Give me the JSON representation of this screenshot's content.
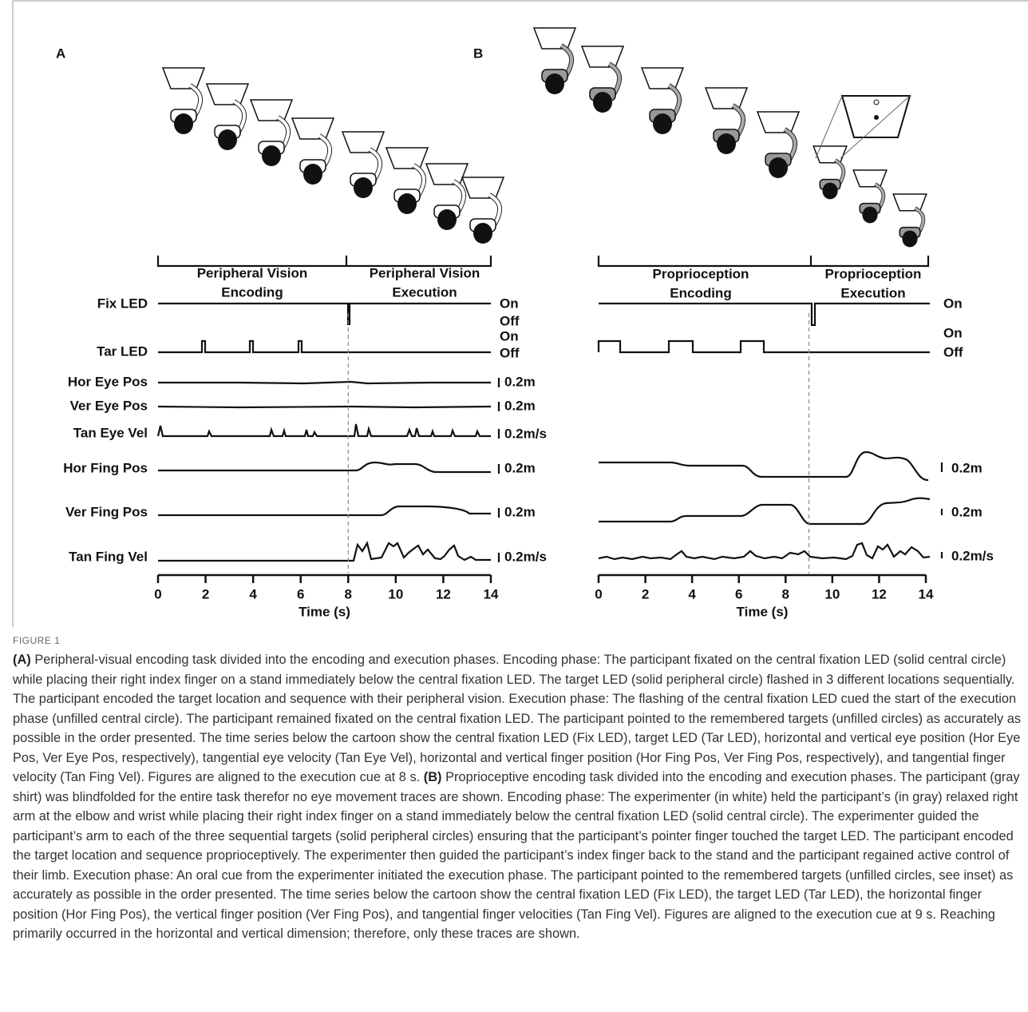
{
  "panel_a": {
    "label": "A",
    "phase_encoding": [
      "Peripheral Vision",
      "Encoding"
    ],
    "phase_execution": [
      "Peripheral Vision",
      "Execution"
    ],
    "rows": [
      "Fix LED",
      "Tar LED",
      "Hor Eye Pos",
      "Ver Eye Pos",
      "Tan Eye Vel",
      "Hor Fing Pos",
      "Ver Fing Pos",
      "Tan Fing Vel"
    ],
    "scales": [
      "On",
      "Off",
      "On",
      "Off",
      "0.2m",
      "0.2m",
      "0.2m/s",
      "0.2m",
      "0.2m",
      "0.2m/s"
    ],
    "xlabel": "Time (s)",
    "xlim": [
      0,
      14
    ],
    "xticks": [
      0,
      2,
      4,
      6,
      8,
      10,
      12,
      14
    ],
    "execution_cue": 8
  },
  "panel_b": {
    "label": "B",
    "phase_encoding": [
      "Proprioception",
      "Encoding"
    ],
    "phase_execution": [
      "Proprioception",
      "Execution"
    ],
    "scales": [
      "On",
      "On",
      "Off",
      "0.2m",
      "0.2m",
      "0.2m/s"
    ],
    "xlabel": "Time (s)",
    "xlim": [
      0,
      14
    ],
    "xticks": [
      0,
      2,
      4,
      6,
      8,
      10,
      12,
      14
    ],
    "execution_cue": 9
  },
  "caption": {
    "figure_label": "FIGURE 1",
    "a_label": "(A)",
    "a_text": " Peripheral-visual encoding task divided into the encoding and execution phases. Encoding phase: The participant fixated on the central fixation LED (solid central circle) while placing their right index finger on a stand immediately below the central fixation LED. The target LED (solid peripheral circle) flashed in 3 different locations sequentially. The participant encoded the target location and sequence with their peripheral vision. Execution phase: The flashing of the central fixation LED cued the start of the execution phase (unfilled central circle). The participant remained fixated on the central fixation LED. The participant pointed to the remembered targets (unfilled circles) as accurately as possible in the order presented. The time series below the cartoon show the central fixation LED (Fix LED), target LED (Tar LED), horizontal and vertical eye position (Hor Eye Pos, Ver Eye Pos, respectively), tangential eye velocity (Tan Eye Vel), horizontal and vertical finger position (Hor Fing Pos, Ver Fing Pos, respectively), and tangential finger velocity (Tan Fing Vel). Figures are aligned to the execution cue at 8 s. ",
    "b_label": "(B)",
    "b_text": " Proprioceptive encoding task divided into the encoding and execution phases. The participant (gray shirt) was blindfolded for the entire task therefor no eye movement traces are shown. Encoding phase: The experimenter (in white) held the participant’s (in gray) relaxed right arm at the elbow and wrist while placing their right index finger on a stand immediately below the central fixation LED (solid central circle). The experimenter guided the participant’s arm to each of the three sequential targets (solid peripheral circles) ensuring that the participant’s pointer finger touched the target LED. The participant encoded the target location and sequence proprioceptively. The experimenter then guided the participant’s index finger back to the stand and the participant regained active control of their limb. Execution phase: An oral cue from the experimenter initiated the execution phase. The participant pointed to the remembered targets (unfilled circles, see inset) as accurately as possible in the order presented. The time series below the cartoon show the central fixation LED (Fix LED), the target LED (Tar LED), the horizontal finger position (Hor Fing Pos), the vertical finger position (Ver Fing Pos), and tangential finger velocities (Tan Fing Vel). Figures are aligned to the execution cue at 9 s. Reaching primarily occurred in the horizontal and vertical dimension; therefore, only these traces are shown."
  }
}
